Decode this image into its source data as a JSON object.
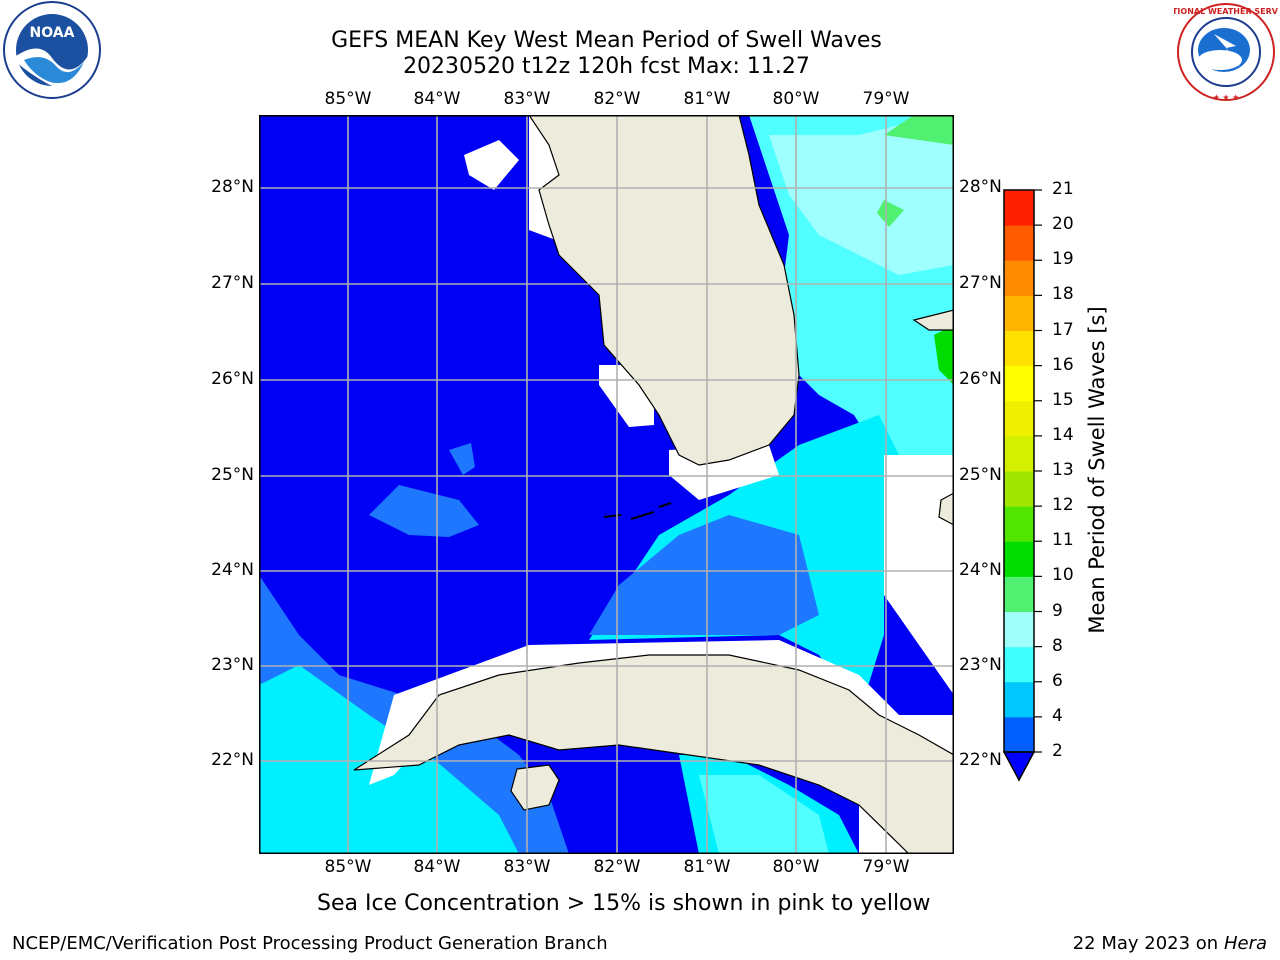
{
  "title": {
    "line1": "GEFS MEAN Key West Mean Period of Swell Waves",
    "line2": "20230520 t12z 120h fcst   Max: 11.27"
  },
  "logos": {
    "left_logo_text": "NOAA",
    "left_ring_text": "NATIONAL OCEANIC AND ATMOSPHERIC ADMINISTRATION · U.S. DEPARTMENT OF COMMERCE",
    "right_ring_text": "NATIONAL WEATHER SERVICE"
  },
  "map": {
    "lon_labels": [
      "85°W",
      "84°W",
      "83°W",
      "82°W",
      "81°W",
      "80°W",
      "79°W"
    ],
    "lat_labels": [
      "28°N",
      "27°N",
      "26°N",
      "25°N",
      "24°N",
      "23°N",
      "22°N"
    ],
    "colors": {
      "land": "#ecebdc",
      "bin_2_4": "#0000f5",
      "bin_4_6": "#1e78ff",
      "bin_6_8": "#00f0ff",
      "bin_8_9": "#50ffff",
      "bin_9_10": "#9efffe",
      "gridline": "#b0b0b0"
    }
  },
  "colorbar": {
    "label": "Mean Period of Swell Waves [s]",
    "ticks": [
      "2",
      "4",
      "6",
      "8",
      "9",
      "10",
      "11",
      "12",
      "13",
      "14",
      "15",
      "16",
      "17",
      "18",
      "19",
      "20",
      "21"
    ],
    "colors": [
      "#0060ff",
      "#00c8ff",
      "#40ffff",
      "#a0fff8",
      "#50f070",
      "#00dc00",
      "#50e600",
      "#a0e600",
      "#d2f000",
      "#eef000",
      "#ffff00",
      "#ffe000",
      "#ffb400",
      "#ff8c00",
      "#ff5a00",
      "#ff2000"
    ],
    "extend_color": "#0000ff"
  },
  "footer": {
    "caption": "Sea Ice Concentration > 15% is shown in pink to yellow",
    "branch": "NCEP/EMC/Verification Post Processing Product Generation Branch",
    "date": "22 May 2023 on",
    "machine": "Hera"
  }
}
